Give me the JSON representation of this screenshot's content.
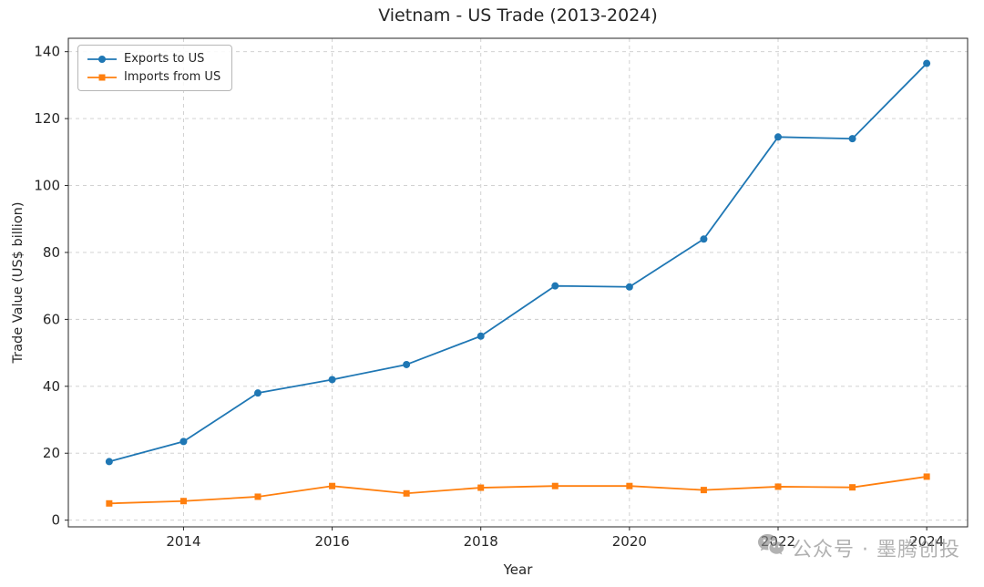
{
  "chart_data": {
    "type": "line",
    "title": "Vietnam - US Trade (2013-2024)",
    "xlabel": "Year",
    "ylabel": "Trade Value (US$ billion)",
    "x": [
      2013,
      2014,
      2015,
      2016,
      2017,
      2018,
      2019,
      2020,
      2021,
      2022,
      2023,
      2024
    ],
    "series": [
      {
        "name": "Exports to US",
        "color": "#1f77b4",
        "marker": "circle",
        "values": [
          17.5,
          23.5,
          38,
          42,
          46.5,
          55,
          70,
          69.7,
          84,
          114.5,
          114,
          136.5
        ]
      },
      {
        "name": "Imports from US",
        "color": "#ff7f0e",
        "marker": "square",
        "values": [
          5,
          5.7,
          7,
          10.2,
          8,
          9.7,
          10.2,
          10.2,
          9,
          10,
          9.8,
          13
        ]
      }
    ],
    "xticks": [
      2014,
      2016,
      2018,
      2020,
      2022,
      2024
    ],
    "yticks": [
      0,
      20,
      40,
      60,
      80,
      100,
      120,
      140
    ],
    "xlim": [
      2012.45,
      2024.55
    ],
    "ylim": [
      -2,
      144
    ],
    "grid": true,
    "grid_style": "dashed",
    "legend_position": "upper left"
  },
  "watermark": {
    "icon": "wechat-icon",
    "text": "公众号 · 墨腾创投"
  }
}
